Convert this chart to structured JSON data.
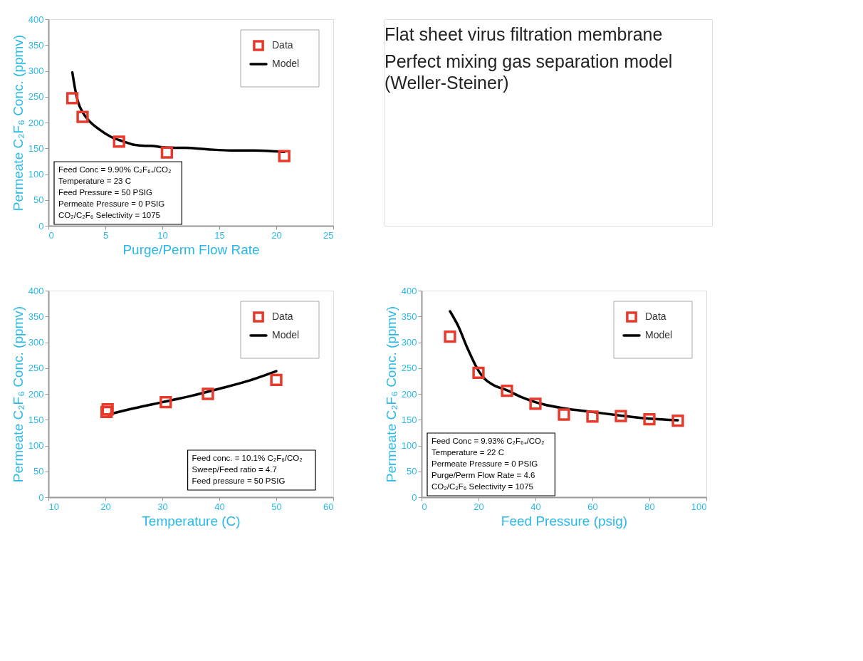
{
  "chart_data": [
    {
      "type": "scatter",
      "xlabel": "Purge/Perm Flow Rate",
      "ylabel": "Permeate C₂F₆ Conc. (ppmv)",
      "xlim": [
        0,
        25
      ],
      "xticks": [
        0,
        5,
        10,
        15,
        20,
        25
      ],
      "ylim": [
        0,
        400
      ],
      "yticks": [
        0,
        50,
        100,
        150,
        200,
        250,
        300,
        350,
        400
      ],
      "grid": false,
      "legend": "top right",
      "series": [
        {
          "name": "Data",
          "type": "scatter",
          "marker": "square",
          "color": "#e8392a",
          "x": [
            2.1,
            3.0,
            6.2,
            10.4,
            20.7
          ],
          "values": [
            247,
            211,
            163,
            142,
            135
          ]
        },
        {
          "name": "Model",
          "type": "line",
          "marker": "none",
          "line_style": "solid",
          "color": "#000000",
          "x": [
            2.1,
            2.3,
            2.6,
            3.0,
            3.5,
            4.5,
            5.5,
            6.5,
            7.5,
            8.5,
            9,
            10,
            11,
            12,
            14,
            16,
            18,
            20,
            20.7
          ],
          "values": [
            297,
            270,
            240,
            220,
            205,
            186,
            172,
            164,
            157,
            155,
            155,
            152,
            151,
            151,
            148,
            146,
            146,
            144,
            143
          ]
        }
      ],
      "annotations": [
        "Feed Conc = 9.90% C₂F₆₊/CO₂",
        "Temperature = 23 C",
        "Feed Pressure = 50 PSIG",
        "Permeate Pressure = 0 PSIG",
        "CO₂/C₂F₆ Selectivity = 1075"
      ]
    },
    {
      "type": "other",
      "annotations": [
        "Flat sheet virus filtration membrane",
        "Perfect mixing gas separation model\n(Weller-Steiner)"
      ]
    },
    {
      "type": "scatter",
      "xlabel": "Temperature (C)",
      "ylabel": "Permeate C₂F₆ Conc. (ppmv)",
      "xlim": [
        10,
        60
      ],
      "xticks": [
        10,
        20,
        30,
        40,
        50,
        60
      ],
      "ylim": [
        0,
        400
      ],
      "yticks": [
        0,
        50,
        100,
        150,
        200,
        250,
        300,
        350,
        400
      ],
      "grid": false,
      "legend": "top right",
      "series": [
        {
          "name": "Data",
          "type": "scatter",
          "marker": "square",
          "color": "#e8392a",
          "x": [
            20.2,
            20.4,
            30.6,
            38,
            50
          ],
          "values": [
            165,
            170,
            184,
            200,
            227
          ]
        },
        {
          "name": "Model",
          "type": "line",
          "marker": "none",
          "line_style": "solid",
          "color": "#000000",
          "x": [
            20.5,
            25,
            30,
            35,
            40,
            45,
            50
          ],
          "values": [
            160,
            172,
            184,
            196,
            210,
            225,
            244
          ]
        }
      ],
      "annotations": [
        "Feed conc. = 10.1% C₂F₆/CO₂",
        "Sweep/Feed ratio = 4.7",
        "Feed pressure = 50 PSIG"
      ]
    },
    {
      "type": "scatter",
      "xlabel": "Feed Pressure (psig)",
      "ylabel": "Permeate C₂F₆ Conc. (ppmv)",
      "xlim": [
        0,
        100
      ],
      "xticks": [
        0,
        20,
        40,
        60,
        80,
        100
      ],
      "ylim": [
        0,
        400
      ],
      "yticks": [
        0,
        50,
        100,
        150,
        200,
        250,
        300,
        350,
        400
      ],
      "grid": false,
      "legend": "top right",
      "series": [
        {
          "name": "Data",
          "type": "scatter",
          "marker": "square",
          "color": "#e8392a",
          "x": [
            10,
            20,
            30,
            40,
            50,
            60,
            70,
            80,
            90
          ],
          "values": [
            311,
            241,
            206,
            181,
            160,
            156,
            157,
            151,
            148
          ]
        },
        {
          "name": "Model",
          "type": "line",
          "marker": "none",
          "line_style": "solid",
          "color": "#000000",
          "x": [
            10,
            13,
            16,
            20,
            22,
            25,
            30,
            35,
            40,
            50,
            60,
            70,
            80,
            90
          ],
          "values": [
            360,
            330,
            290,
            245,
            230,
            218,
            207,
            194,
            184,
            172,
            165,
            158,
            152,
            149
          ]
        }
      ],
      "annotations": [
        "Feed Conc = 9.93% C₂F₆₊/CO₂",
        "Temperature = 22 C",
        "Permeate Pressure = 0 PSIG",
        "Purge/Perm Flow Rate = 4.6",
        "CO₂/C₂F₆ Selectivity = 1075"
      ]
    }
  ]
}
